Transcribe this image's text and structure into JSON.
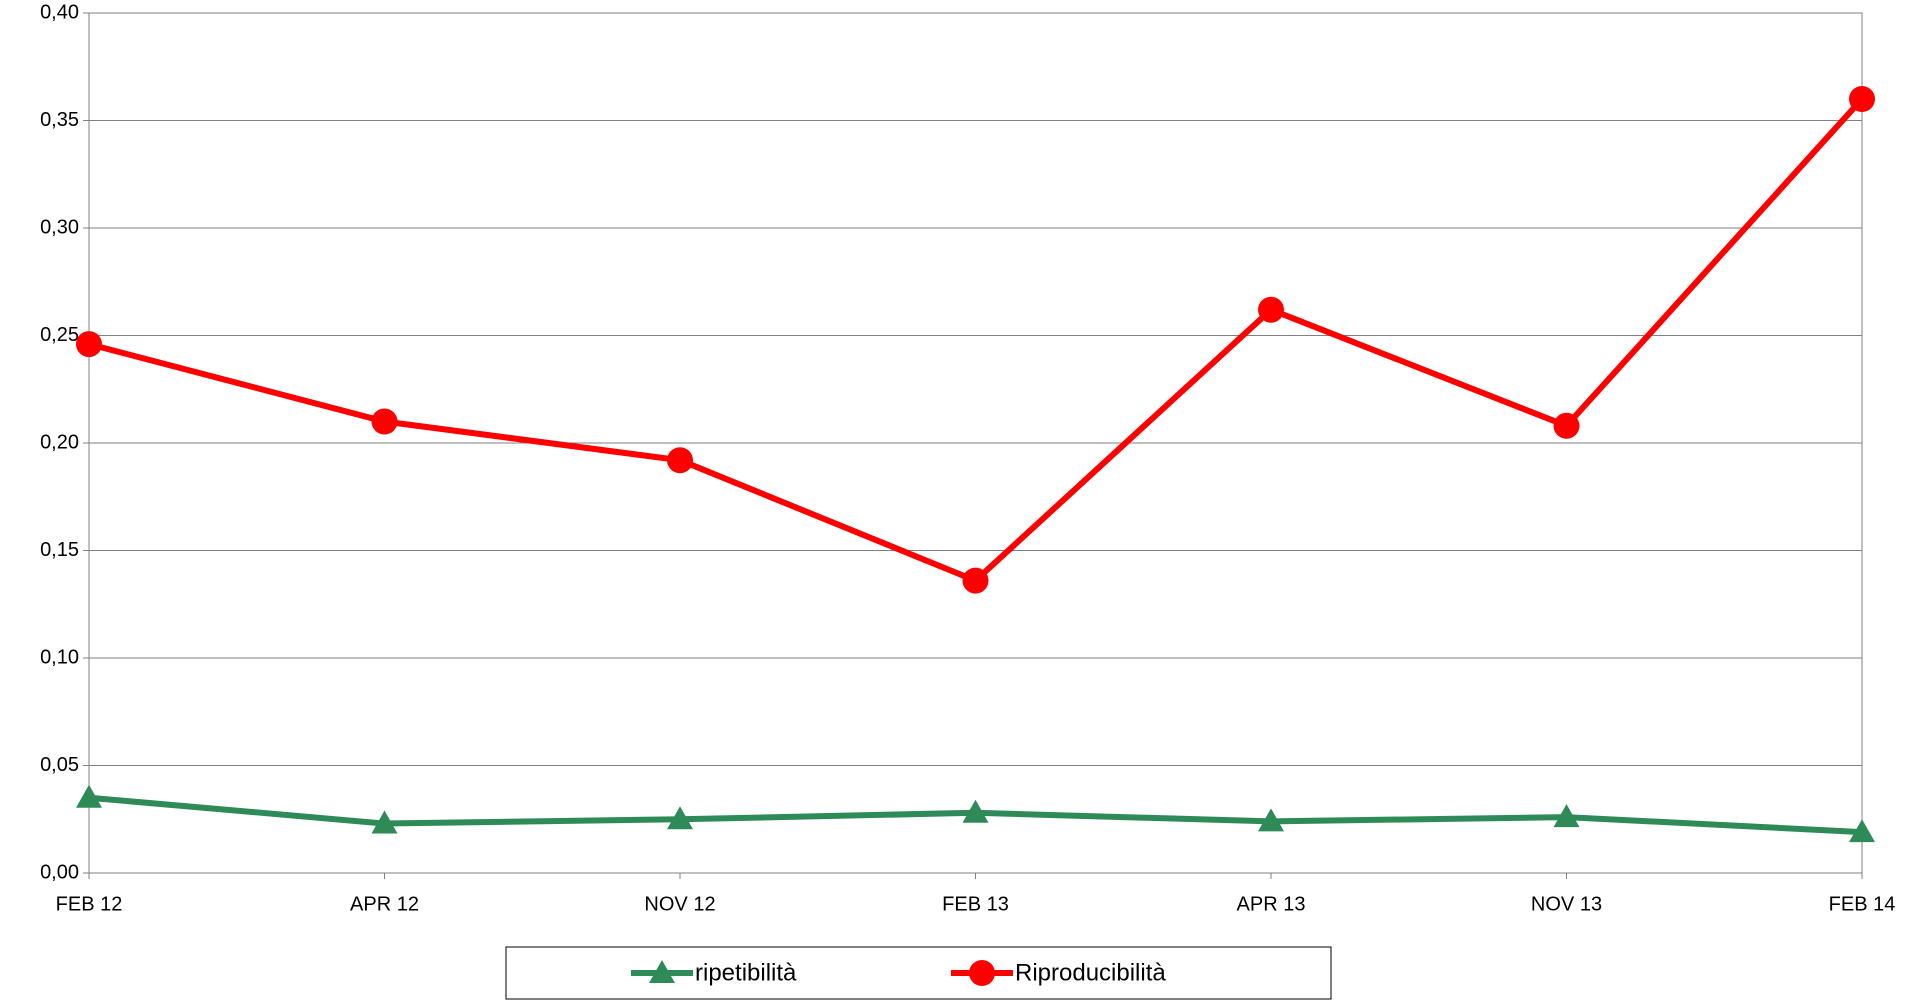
{
  "chart_data": {
    "type": "line",
    "categories": [
      "FEB 12",
      "APR 12",
      "NOV 12",
      "FEB 13",
      "APR 13",
      "NOV 13",
      "FEB 14"
    ],
    "series": [
      {
        "name": "ripetibilità",
        "color": "#2e8b57",
        "marker": "triangle",
        "values": [
          0.035,
          0.023,
          0.025,
          0.028,
          0.024,
          0.026,
          0.019
        ]
      },
      {
        "name": "Riproducibilità",
        "color": "#ff0000",
        "marker": "circle",
        "values": [
          0.246,
          0.21,
          0.192,
          0.136,
          0.262,
          0.208,
          0.36
        ]
      }
    ],
    "ylim": [
      0,
      0.4
    ],
    "yticks": [
      {
        "value": 0,
        "label": "0,00"
      },
      {
        "value": 0.05,
        "label": "0,05"
      },
      {
        "value": 0.1,
        "label": "0,10"
      },
      {
        "value": 0.15,
        "label": "0,15"
      },
      {
        "value": 0.2,
        "label": "0,20"
      },
      {
        "value": 0.25,
        "label": "0,25"
      },
      {
        "value": 0.3,
        "label": "0,30"
      },
      {
        "value": 0.35,
        "label": "0,35"
      },
      {
        "value": 0.4,
        "label": "0,40"
      }
    ],
    "grid": true,
    "legend": "bottom"
  }
}
